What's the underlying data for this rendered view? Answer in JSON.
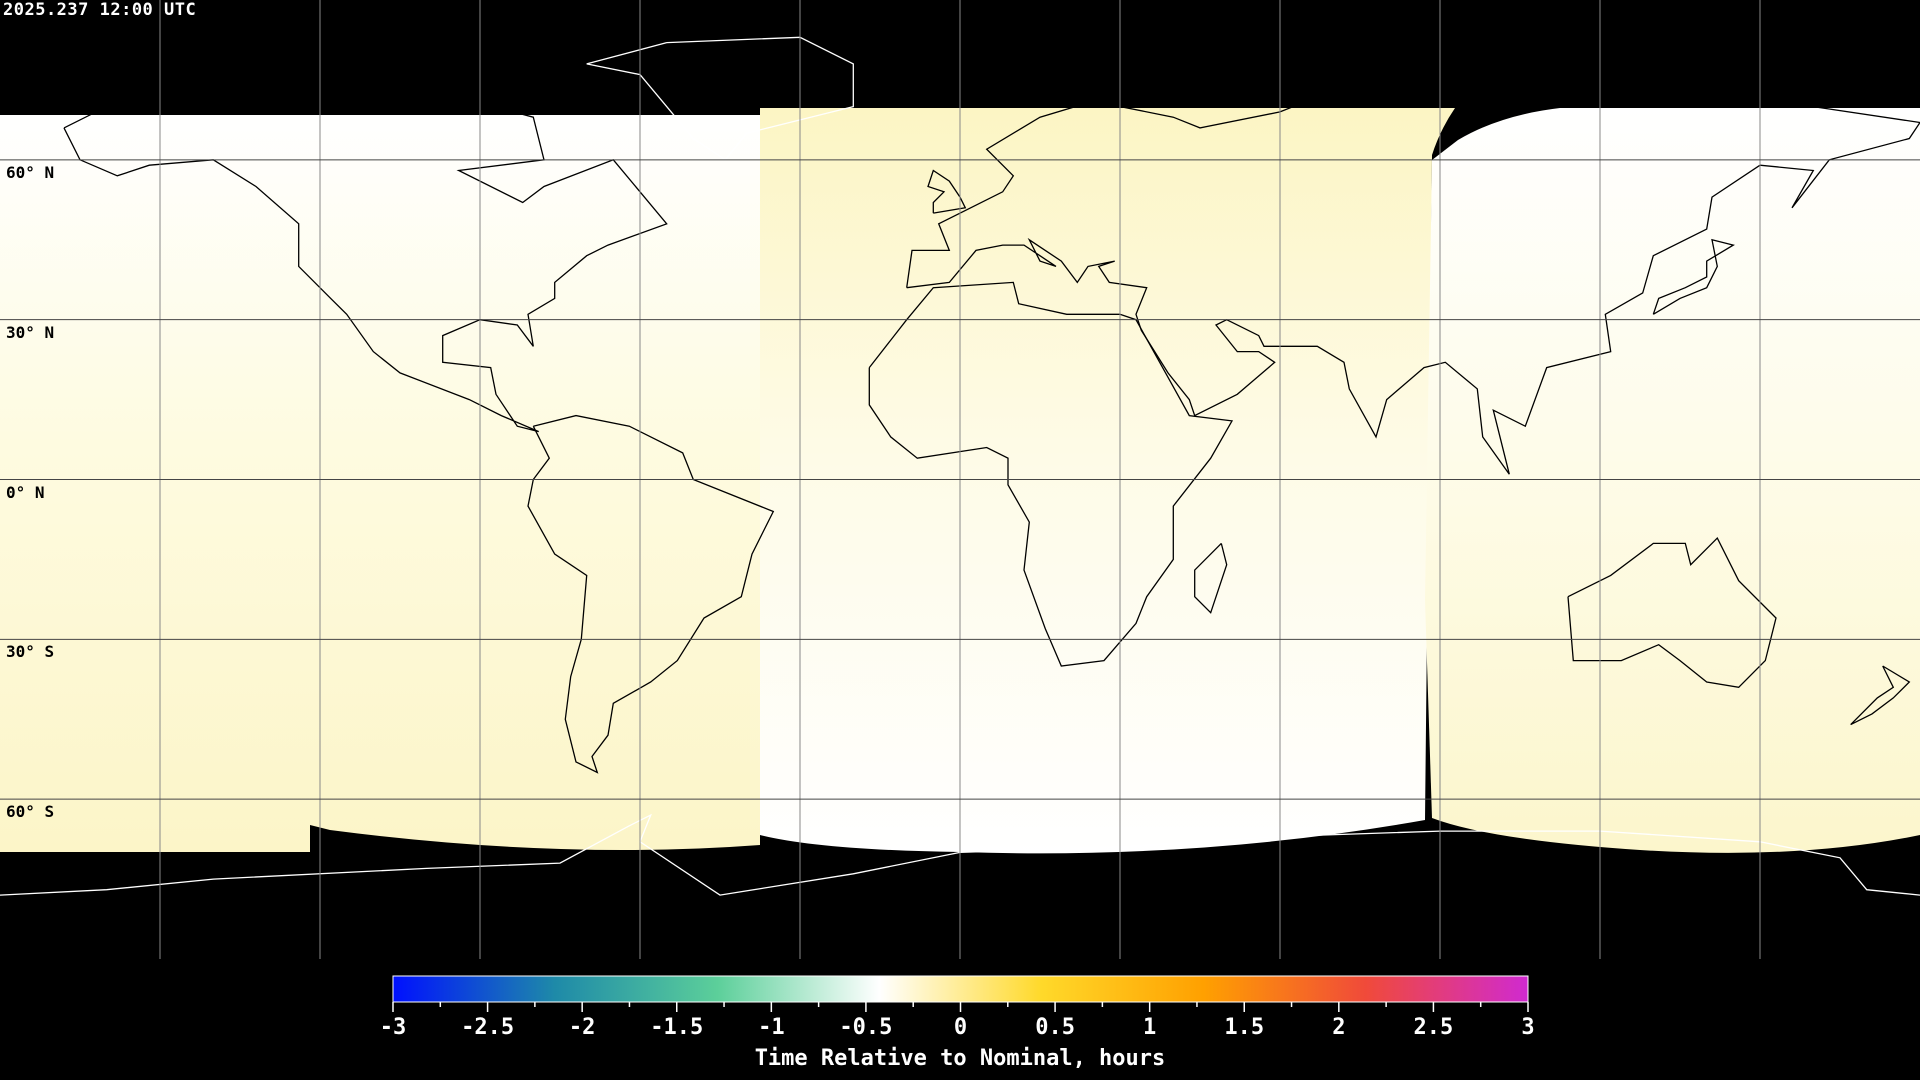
{
  "header": {
    "title": "2025.237 12:00 UTC"
  },
  "map": {
    "projection": "equirectangular",
    "lat_labels": [
      "60° N",
      "30° N",
      "0° N",
      "30° S",
      "60° S"
    ],
    "grid_interval_deg": 30,
    "background_color": "#000000",
    "coastline_color": "#000000",
    "gridline_color": "#000000"
  },
  "colorbar": {
    "title": "Time Relative to Nominal, hours",
    "range": [
      -3,
      3
    ],
    "tick_labels": [
      "-3",
      "-2.5",
      "-2",
      "-1.5",
      "-1",
      "-0.5",
      "0",
      "0.5",
      "1",
      "1.5",
      "2",
      "2.5",
      "3"
    ],
    "colors": [
      "#0010ff",
      "#1e8aa8",
      "#5ccf9a",
      "#ffffff",
      "#ffd92a",
      "#ffa000",
      "#f04a3a",
      "#d02ad0"
    ]
  }
}
